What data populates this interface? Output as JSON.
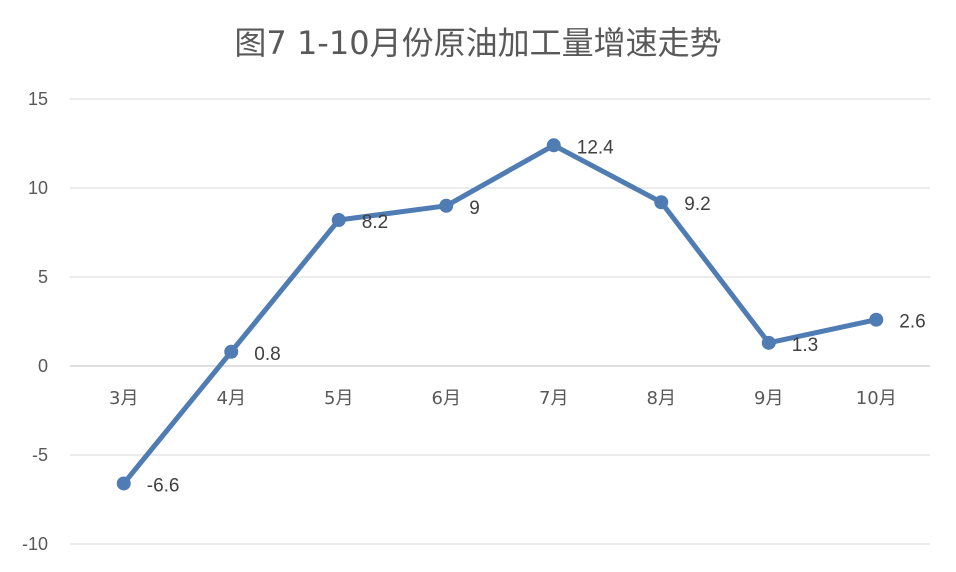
{
  "chart_data": {
    "type": "line",
    "title": "图7  1-10月份原油加工量增速走势",
    "categories": [
      "3月",
      "4月",
      "5月",
      "6月",
      "7月",
      "8月",
      "9月",
      "10月"
    ],
    "series": [
      {
        "values": [
          -6.6,
          0.8,
          8.2,
          9,
          12.4,
          9.2,
          1.3,
          2.6
        ]
      }
    ],
    "data_labels": [
      "-6.6",
      "0.8",
      "8.2",
      "9",
      "12.4",
      "9.2",
      "1.3",
      "2.6"
    ],
    "y_ticks": [
      "15",
      "10",
      "5",
      "0",
      "-5",
      "-10"
    ],
    "ylim": [
      -10,
      15
    ],
    "grid": true,
    "legend": "none",
    "colors": {
      "line": "#4f7cb3",
      "grid": "#d9d9d9",
      "axis": "#bfbfbf",
      "text": "#595959"
    }
  }
}
